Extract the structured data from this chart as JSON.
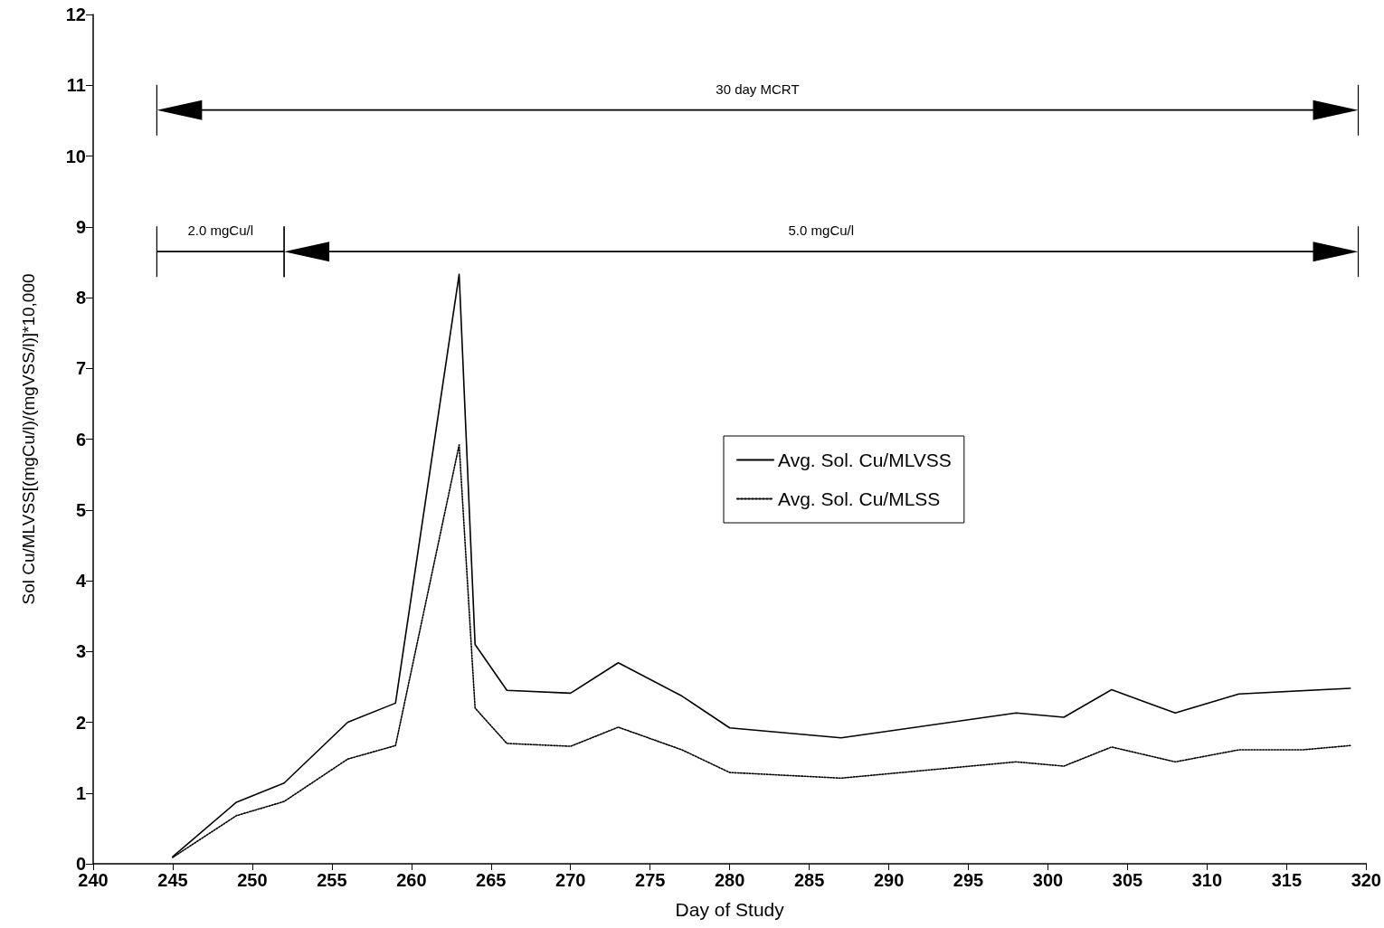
{
  "chart_data": {
    "type": "line",
    "xlabel": "Day of Study",
    "ylabel": "Sol Cu/MLVSS[(mgCu/l)/(mgVSS/l)]*10,000",
    "xlim": [
      240,
      320
    ],
    "xticks": [
      240,
      245,
      250,
      255,
      260,
      265,
      270,
      275,
      280,
      285,
      290,
      295,
      300,
      305,
      310,
      315,
      320
    ],
    "ylim": [
      0,
      12
    ],
    "yticks": [
      0,
      1,
      2,
      3,
      4,
      5,
      6,
      7,
      8,
      9,
      10,
      11,
      12
    ],
    "grid": false,
    "legend": "right",
    "marker": "none",
    "annotations": [
      "30 day MCRT",
      "2.0 mgCu/l",
      "5.0 mgCu/l"
    ],
    "series": [
      {
        "name": "Avg. Sol. Cu/MLVSS",
        "color": "#000000",
        "line_style": "solid",
        "x": [
          245,
          249,
          252,
          256,
          259,
          263,
          264,
          266,
          270,
          273,
          277,
          280,
          287,
          298,
          301,
          304,
          308,
          312,
          319
        ],
        "values": [
          0.1,
          0.87,
          1.14,
          2.0,
          2.27,
          8.33,
          3.1,
          2.45,
          2.41,
          2.84,
          2.37,
          1.92,
          1.78,
          2.13,
          2.07,
          2.46,
          2.13,
          2.4,
          2.48
        ]
      },
      {
        "name": "Avg. Sol. Cu/MLSS",
        "color": "#000000",
        "line_style": "dotted",
        "x": [
          245,
          249,
          252,
          256,
          259,
          263,
          264,
          266,
          270,
          273,
          277,
          280,
          287,
          298,
          301,
          304,
          308,
          312,
          316,
          319
        ],
        "values": [
          0.09,
          0.68,
          0.88,
          1.48,
          1.67,
          5.92,
          2.2,
          1.7,
          1.66,
          1.93,
          1.61,
          1.29,
          1.21,
          1.44,
          1.38,
          1.65,
          1.44,
          1.61,
          1.61,
          1.67
        ]
      }
    ]
  }
}
